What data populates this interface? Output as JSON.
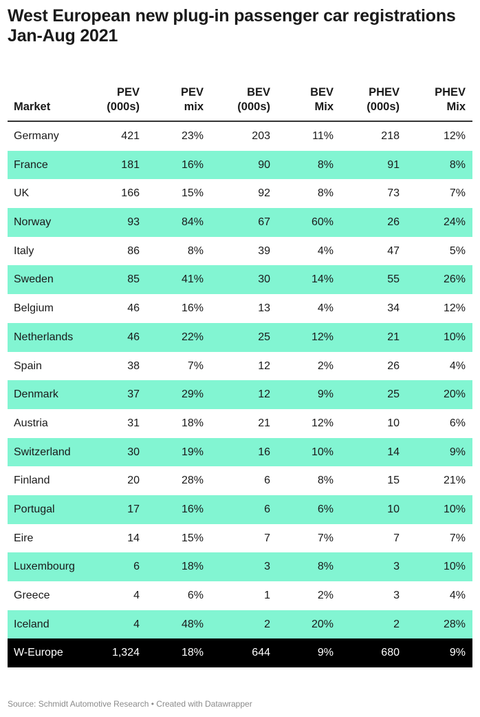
{
  "title": "West European new plug-in passenger car registrations Jan-Aug 2021",
  "source": "Source: Schmidt Automotive Research • Created with Datawrapper",
  "colors": {
    "alt_row": "#82f5d2",
    "total_row": "#000000",
    "total_text": "#ffffff",
    "text": "#1a1a1a"
  },
  "chart_data": {
    "type": "table",
    "columns": [
      "Market",
      "PEV (000s)",
      "PEV mix",
      "BEV (000s)",
      "BEV Mix",
      "PHEV (000s)",
      "PHEV Mix"
    ],
    "rows": [
      [
        "Germany",
        "421",
        "23%",
        "203",
        "11%",
        "218",
        "12%"
      ],
      [
        "France",
        "181",
        "16%",
        "90",
        "8%",
        "91",
        "8%"
      ],
      [
        "UK",
        "166",
        "15%",
        "92",
        "8%",
        "73",
        "7%"
      ],
      [
        "Norway",
        "93",
        "84%",
        "67",
        "60%",
        "26",
        "24%"
      ],
      [
        "Italy",
        "86",
        "8%",
        "39",
        "4%",
        "47",
        "5%"
      ],
      [
        "Sweden",
        "85",
        "41%",
        "30",
        "14%",
        "55",
        "26%"
      ],
      [
        "Belgium",
        "46",
        "16%",
        "13",
        "4%",
        "34",
        "12%"
      ],
      [
        "Netherlands",
        "46",
        "22%",
        "25",
        "12%",
        "21",
        "10%"
      ],
      [
        "Spain",
        "38",
        "7%",
        "12",
        "2%",
        "26",
        "4%"
      ],
      [
        "Denmark",
        "37",
        "29%",
        "12",
        "9%",
        "25",
        "20%"
      ],
      [
        "Austria",
        "31",
        "18%",
        "21",
        "12%",
        "10",
        "6%"
      ],
      [
        "Switzerland",
        "30",
        "19%",
        "16",
        "10%",
        "14",
        "9%"
      ],
      [
        "Finland",
        "20",
        "28%",
        "6",
        "8%",
        "15",
        "21%"
      ],
      [
        "Portugal",
        "17",
        "16%",
        "6",
        "6%",
        "10",
        "10%"
      ],
      [
        "Eire",
        "14",
        "15%",
        "7",
        "7%",
        "7",
        "7%"
      ],
      [
        "Luxembourg",
        "6",
        "18%",
        "3",
        "8%",
        "3",
        "10%"
      ],
      [
        "Greece",
        "4",
        "6%",
        "1",
        "2%",
        "3",
        "4%"
      ],
      [
        "Iceland",
        "4",
        "48%",
        "2",
        "20%",
        "2",
        "28%"
      ]
    ],
    "total": [
      "W-Europe",
      "1,324",
      "18%",
      "644",
      "9%",
      "680",
      "9%"
    ]
  }
}
